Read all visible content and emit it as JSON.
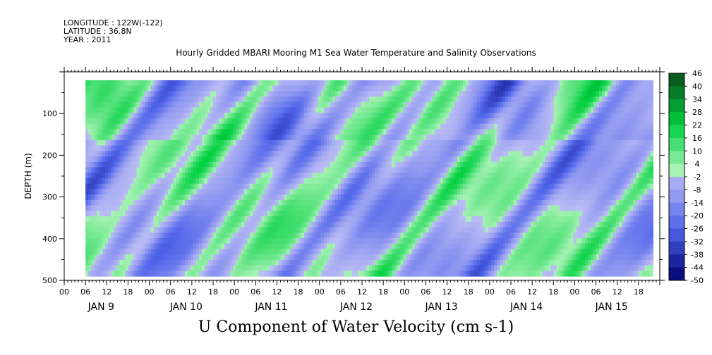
{
  "header": {
    "longitude": "LONGITUDE : 122W(-122)",
    "latitude": "LATITUDE : 36.8N",
    "year": "YEAR : 2011"
  },
  "chart_data": {
    "type": "heatmap",
    "title": "Hourly Gridded MBARI Mooring M1 Sea Water Temperature and Salinity Observations",
    "bottom_label": "U Component of Water Velocity (cm s-1)",
    "ylabel": "DEPTH (m)",
    "y_ticks": [
      100,
      200,
      300,
      400,
      500
    ],
    "ylim": [
      500,
      0
    ],
    "y_reversed": true,
    "x_hour_labels": [
      "00",
      "06",
      "12",
      "18",
      "00",
      "06",
      "12",
      "18",
      "00",
      "06",
      "12",
      "18",
      "00",
      "06",
      "12",
      "18",
      "00",
      "06",
      "12",
      "18",
      "00",
      "06",
      "12",
      "18",
      "00",
      "06",
      "12",
      "18"
    ],
    "x_day_labels": [
      "JAN  9",
      "JAN 10",
      "JAN 11",
      "JAN 12",
      "JAN 13",
      "JAN 14",
      "JAN 15"
    ],
    "xlim_days": [
      9,
      16
    ],
    "data_start_day": 9.25,
    "data_end_day": 15.92,
    "data_depth_range": [
      20,
      490
    ],
    "colorbar": {
      "levels": [
        46,
        40,
        34,
        28,
        22,
        16,
        10,
        4,
        -2,
        -8,
        -14,
        -20,
        -26,
        -32,
        -38,
        -44,
        -50
      ],
      "colors": {
        "strong_positive": "#0a4a1a",
        "positive": "#00d040",
        "weak_positive": "#a6f2b4",
        "weak_negative": "#b8baf4",
        "negative": "#5064ea",
        "strong_negative": "#000070"
      }
    }
  }
}
